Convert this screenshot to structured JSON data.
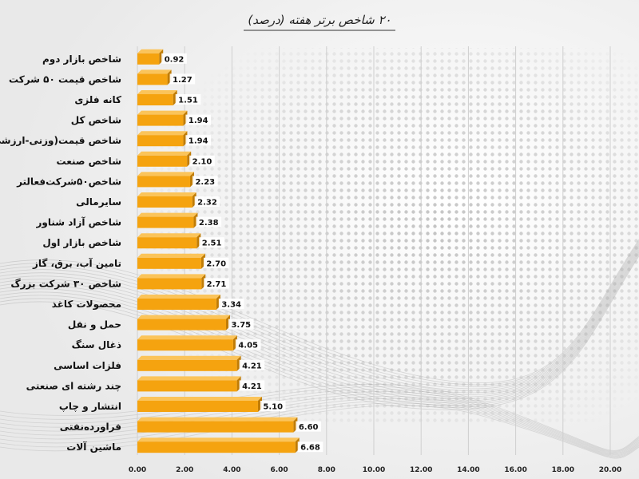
{
  "chart_data": {
    "type": "bar",
    "orientation": "horizontal",
    "title": "۲۰ شاخص برتر هفته (درصد)",
    "categories": [
      "شاخص بازار دوم",
      "شاخص قیمت ۵۰ شرکت",
      "کانه فلزی",
      "شاخص کل",
      "شاخص قیمت(وزنی-ارزشی)",
      "شاخص صنعت",
      "شاخص۵۰شرکت‌فعالتر",
      "سایرمالی",
      "شاخص آزاد شناور",
      "شاخص بازار اول",
      "تامین آب، برق، گاز",
      "شاخص ۳۰ شرکت بزرگ",
      "محصولات کاغذ",
      "حمل و نقل",
      "ذغال سنگ",
      "فلزات اساسی",
      "چند رشته ای صنعتی",
      "انتشار و چاپ",
      "فراورده‌نفتی",
      "ماشین آلات"
    ],
    "values": [
      0.92,
      1.27,
      1.51,
      1.94,
      1.94,
      2.1,
      2.23,
      2.32,
      2.38,
      2.51,
      2.7,
      2.71,
      3.34,
      3.75,
      4.05,
      4.21,
      4.21,
      5.1,
      6.6,
      6.68
    ],
    "value_labels": [
      "0.92",
      "1.27",
      "1.51",
      "1.94",
      "1.94",
      "2.10",
      "2.23",
      "2.32",
      "2.38",
      "2.51",
      "2.70",
      "2.71",
      "3.34",
      "3.75",
      "4.05",
      "4.21",
      "4.21",
      "5.10",
      "6.60",
      "6.68"
    ],
    "xlim": [
      0,
      20
    ],
    "x_ticks": [
      0,
      2,
      4,
      6,
      8,
      10,
      12,
      14,
      16,
      18,
      20
    ],
    "x_tick_labels": [
      "0.00",
      "2.00",
      "4.00",
      "6.00",
      "8.00",
      "10.00",
      "12.00",
      "14.00",
      "16.00",
      "18.00",
      "20.00"
    ],
    "grid": true,
    "bar_color": "#f5a30f",
    "bar_top_color": "#fbc45a",
    "bar_side_color": "#c07c05",
    "grid_color": "#cfcfcf"
  }
}
